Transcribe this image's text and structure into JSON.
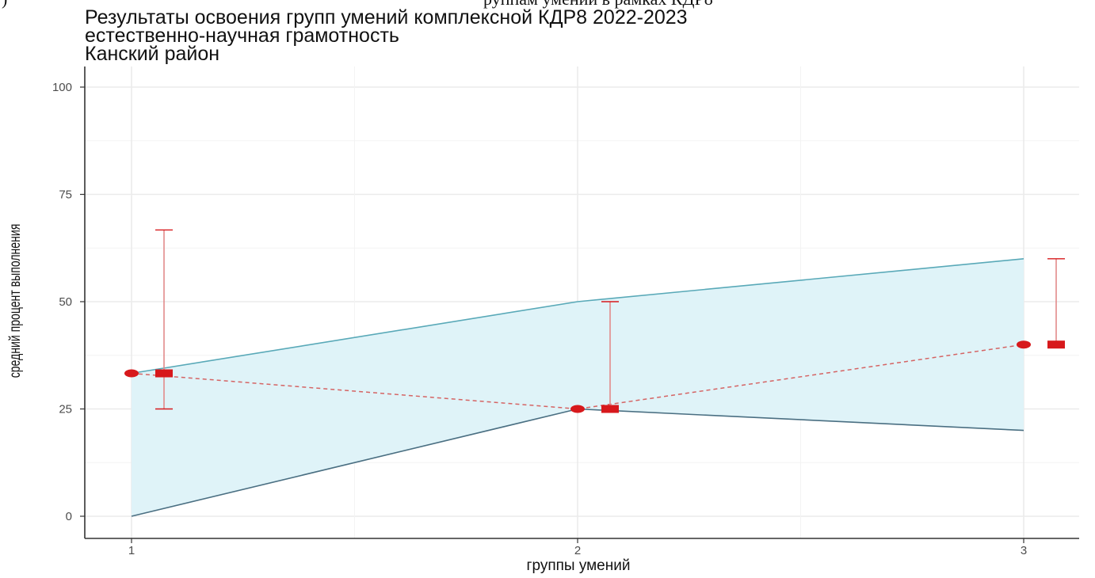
{
  "top_fragment": {
    "left": ")",
    "right": "руппам умений в рамках КДР8"
  },
  "chart_data": {
    "type": "line",
    "title_lines": [
      "Результаты освоения групп умений комплексной КДР8 2022-2023",
      "естественно-научная грамотность",
      "Канский район"
    ],
    "xlabel": "группы умений",
    "ylabel": "средний процент выполнения",
    "x_ticks": [
      "1",
      "2",
      "3"
    ],
    "y_ticks": [
      "0",
      "25",
      "50",
      "75",
      "100"
    ],
    "xlim": [
      0.9,
      3.1
    ],
    "ylim": [
      0,
      100
    ],
    "grid": true,
    "colors": {
      "band_fill": "#dff3f8",
      "band_upper": "#59a9b8",
      "band_lower": "#4a6f82",
      "points": "#d7191c",
      "dashed_line": "#d56464",
      "error_bars": "#e28a8a"
    },
    "band": {
      "x": [
        1,
        2,
        3
      ],
      "lower": [
        0,
        25,
        20
      ],
      "upper": [
        33.3,
        50,
        60
      ]
    },
    "circle_points": [
      {
        "x": 1,
        "y": 33.3
      },
      {
        "x": 2,
        "y": 25
      },
      {
        "x": 3,
        "y": 40
      }
    ],
    "square_points": [
      {
        "x": 1,
        "y": 33.3,
        "error_low": 25,
        "error_high": 66.7
      },
      {
        "x": 2,
        "y": 25,
        "error_low": 25,
        "error_high": 50
      },
      {
        "x": 3,
        "y": 40,
        "error_low": 40,
        "error_high": 60
      }
    ]
  }
}
